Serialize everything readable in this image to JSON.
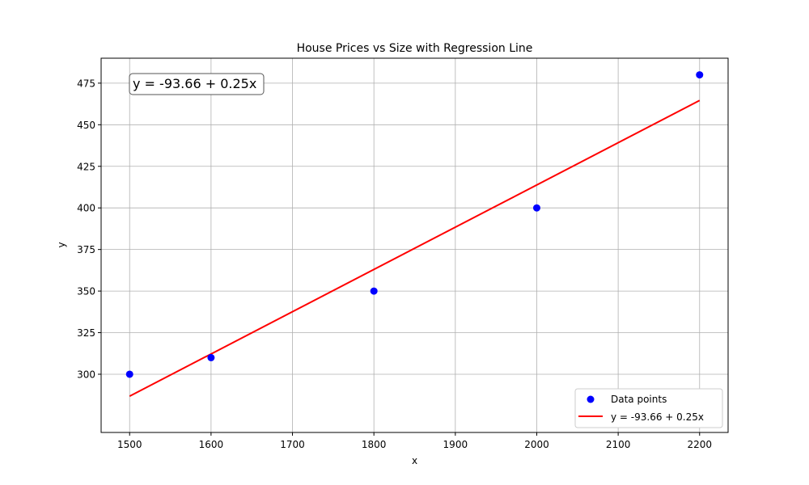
{
  "chart_data": {
    "type": "scatter",
    "title": "House Prices vs Size with Regression Line",
    "xlabel": "x",
    "ylabel": "y",
    "xlim": [
      1465,
      2235
    ],
    "ylim": [
      265,
      490
    ],
    "xticks": [
      1500,
      1600,
      1700,
      1800,
      1900,
      2000,
      2100,
      2200
    ],
    "yticks": [
      300,
      325,
      350,
      375,
      400,
      425,
      450,
      475
    ],
    "grid": true,
    "legend_position": "lower-right",
    "annotation": "y = -93.66 + 0.25x",
    "series": [
      {
        "name": "Data points",
        "kind": "scatter",
        "color": "#0000ff",
        "x": [
          1500,
          1600,
          1800,
          2000,
          2200
        ],
        "y": [
          300,
          310,
          350,
          400,
          480
        ]
      },
      {
        "name": "y = -93.66 + 0.25x",
        "kind": "line",
        "color": "#ff0000",
        "x": [
          1500,
          2200
        ],
        "y": [
          286.8,
          464.6
        ]
      }
    ]
  }
}
